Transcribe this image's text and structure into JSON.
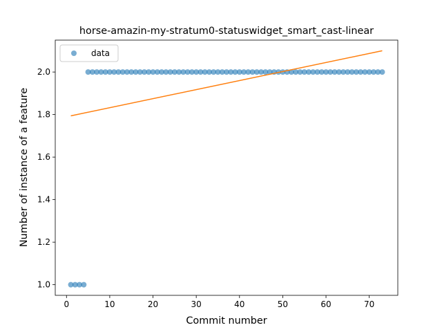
{
  "chart_data": {
    "type": "scatter",
    "title": "horse-amazin-my-stratum0-statuswidget_smart_cast-linear",
    "xlabel": "Commit number",
    "ylabel": "Number of instance of a feature",
    "xlim": [
      -2.6,
      76.6
    ],
    "ylim": [
      0.95,
      2.15
    ],
    "xticks": [
      0,
      10,
      20,
      30,
      40,
      50,
      60,
      70
    ],
    "yticks": [
      1.0,
      1.2,
      1.4,
      1.6,
      1.8,
      2.0
    ],
    "ytick_labels": [
      "1.0",
      "1.2",
      "1.4",
      "1.6",
      "1.8",
      "2.0"
    ],
    "legend": {
      "position": "top-left",
      "entries": [
        "data"
      ]
    },
    "grid": false,
    "series": [
      {
        "name": "data",
        "kind": "scatter",
        "color": "#1f77b4",
        "x": [
          1,
          2,
          3,
          4,
          5,
          6,
          7,
          8,
          9,
          10,
          11,
          12,
          13,
          14,
          15,
          16,
          17,
          18,
          19,
          20,
          21,
          22,
          23,
          24,
          25,
          26,
          27,
          28,
          29,
          30,
          31,
          32,
          33,
          34,
          35,
          36,
          37,
          38,
          39,
          40,
          41,
          42,
          43,
          44,
          45,
          46,
          47,
          48,
          49,
          50,
          51,
          52,
          53,
          54,
          55,
          56,
          57,
          58,
          59,
          60,
          61,
          62,
          63,
          64,
          65,
          66,
          67,
          68,
          69,
          70,
          71,
          72,
          73
        ],
        "y": [
          1,
          1,
          1,
          1,
          2,
          2,
          2,
          2,
          2,
          2,
          2,
          2,
          2,
          2,
          2,
          2,
          2,
          2,
          2,
          2,
          2,
          2,
          2,
          2,
          2,
          2,
          2,
          2,
          2,
          2,
          2,
          2,
          2,
          2,
          2,
          2,
          2,
          2,
          2,
          2,
          2,
          2,
          2,
          2,
          2,
          2,
          2,
          2,
          2,
          2,
          2,
          2,
          2,
          2,
          2,
          2,
          2,
          2,
          2,
          2,
          2,
          2,
          2,
          2,
          2,
          2,
          2,
          2,
          2,
          2,
          2,
          2,
          2
        ]
      },
      {
        "kind": "line",
        "color": "#ff7f0e",
        "x": [
          1,
          73
        ],
        "y": [
          1.794,
          2.1
        ]
      }
    ]
  }
}
